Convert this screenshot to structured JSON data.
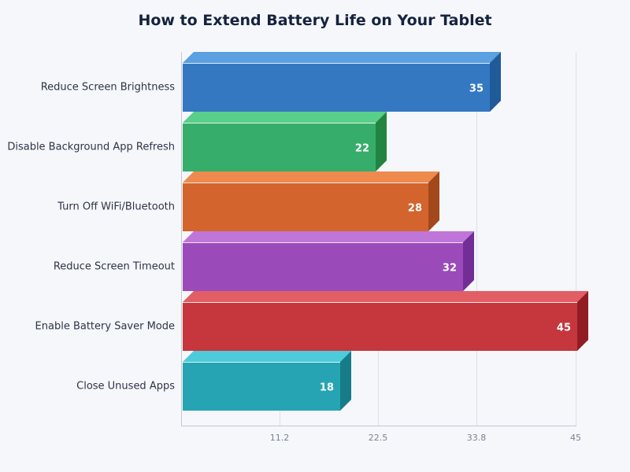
{
  "chart_data": {
    "type": "bar",
    "orientation": "horizontal",
    "style": "3d",
    "title": "How to Extend Battery Life on Your Tablet",
    "xlabel": "",
    "ylabel": "",
    "categories": [
      "Reduce Screen Brightness",
      "Disable Background App Refresh",
      "Turn Off WiFi/Bluetooth",
      "Reduce Screen Timeout",
      "Enable Battery Saver Mode",
      "Close Unused Apps"
    ],
    "values": [
      35,
      22,
      28,
      32,
      45,
      18
    ],
    "data_labels": [
      "35",
      "22",
      "28",
      "32",
      "45",
      "18"
    ],
    "xlim": [
      0,
      45
    ],
    "x_ticks": [
      "11.2",
      "22.5",
      "33.8",
      "45"
    ],
    "x_tick_values": [
      11.25,
      22.5,
      33.75,
      45
    ],
    "grid": {
      "x": true,
      "y": false
    },
    "legend": null,
    "colors": {
      "front": [
        "#3478c2",
        "#37ad6b",
        "#d3642d",
        "#9a4bb9",
        "#c5363d",
        "#26a4b3"
      ],
      "top": [
        "#5ba0e0",
        "#58cf8a",
        "#ef8a4f",
        "#bf76d8",
        "#e25e65",
        "#4ecbda"
      ],
      "side": [
        "#1f5a99",
        "#218441",
        "#a2481b",
        "#722d97",
        "#921c24",
        "#167d88"
      ]
    }
  }
}
